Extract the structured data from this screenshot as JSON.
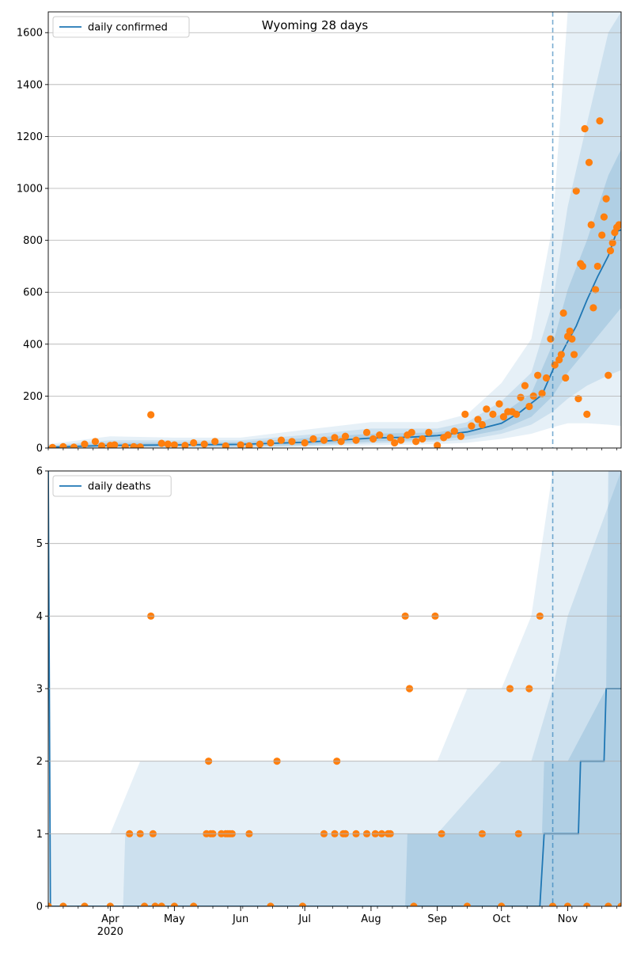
{
  "chart_data": [
    {
      "type": "line",
      "title": "Wyoming 28 days",
      "legend": {
        "placement": "top-left",
        "label": "daily confirmed"
      },
      "ylim": [
        0,
        1680
      ],
      "yticks": [
        0,
        200,
        400,
        600,
        800,
        1000,
        1200,
        1400,
        1600
      ],
      "xlim": [
        "2020-03-03",
        "2020-11-26"
      ],
      "forecast_start": "2020-10-25",
      "grid": "horizontal",
      "colors": {
        "line": "#1f77b4",
        "points": "#ff7f0e",
        "band": "#1f77b4"
      },
      "model_line": {
        "x": [
          "2020-03-03",
          "2020-04-01",
          "2020-05-01",
          "2020-06-01",
          "2020-07-01",
          "2020-08-01",
          "2020-08-20",
          "2020-09-01",
          "2020-09-15",
          "2020-10-01",
          "2020-10-10",
          "2020-10-20",
          "2020-10-25",
          "2020-11-01",
          "2020-11-05",
          "2020-11-10",
          "2020-11-15",
          "2020-11-20",
          "2020-11-24",
          "2020-11-26"
        ],
        "y": [
          3,
          10,
          12,
          14,
          22,
          38,
          42,
          48,
          62,
          95,
          140,
          205,
          300,
          410,
          470,
          570,
          660,
          740,
          835,
          840
        ]
      },
      "bands": [
        {
          "x": [
            "2020-03-03",
            "2020-04-01",
            "2020-05-01",
            "2020-06-01",
            "2020-07-01",
            "2020-08-01",
            "2020-09-01",
            "2020-09-15",
            "2020-10-01",
            "2020-10-15",
            "2020-10-25",
            "2020-11-01",
            "2020-11-10",
            "2020-11-20",
            "2020-11-26"
          ],
          "low": [
            0,
            0,
            0,
            0,
            5,
            10,
            15,
            20,
            35,
            55,
            80,
            95,
            95,
            90,
            85
          ],
          "high": [
            15,
            45,
            40,
            40,
            70,
            100,
            100,
            130,
            250,
            420,
            860,
            1680,
            1680,
            1680,
            1680
          ]
        },
        {
          "x": [
            "2020-03-03",
            "2020-04-01",
            "2020-05-01",
            "2020-06-01",
            "2020-07-01",
            "2020-08-01",
            "2020-09-01",
            "2020-09-15",
            "2020-10-01",
            "2020-10-15",
            "2020-10-25",
            "2020-11-01",
            "2020-11-10",
            "2020-11-20",
            "2020-11-26"
          ],
          "low": [
            0,
            2,
            3,
            4,
            8,
            18,
            25,
            32,
            55,
            90,
            140,
            190,
            240,
            280,
            300
          ],
          "high": [
            10,
            30,
            30,
            30,
            50,
            75,
            75,
            100,
            180,
            290,
            560,
            930,
            1250,
            1600,
            1680
          ]
        },
        {
          "x": [
            "2020-03-03",
            "2020-04-01",
            "2020-05-01",
            "2020-06-01",
            "2020-07-01",
            "2020-08-01",
            "2020-09-01",
            "2020-09-15",
            "2020-10-01",
            "2020-10-15",
            "2020-10-25",
            "2020-11-01",
            "2020-11-10",
            "2020-11-20",
            "2020-11-26"
          ],
          "low": [
            1,
            5,
            6,
            7,
            12,
            25,
            32,
            45,
            70,
            120,
            200,
            290,
            380,
            480,
            540
          ],
          "high": [
            7,
            20,
            20,
            22,
            38,
            55,
            60,
            80,
            130,
            210,
            400,
            610,
            800,
            1050,
            1150
          ]
        }
      ],
      "observed": {
        "x": [
          "2020-03-05",
          "2020-03-10",
          "2020-03-15",
          "2020-03-20",
          "2020-03-25",
          "2020-03-28",
          "2020-04-01",
          "2020-04-03",
          "2020-04-08",
          "2020-04-12",
          "2020-04-15",
          "2020-04-20",
          "2020-04-25",
          "2020-04-28",
          "2020-05-01",
          "2020-05-06",
          "2020-05-10",
          "2020-05-15",
          "2020-05-20",
          "2020-05-25",
          "2020-06-01",
          "2020-06-05",
          "2020-06-10",
          "2020-06-15",
          "2020-06-20",
          "2020-06-25",
          "2020-07-01",
          "2020-07-05",
          "2020-07-10",
          "2020-07-15",
          "2020-07-18",
          "2020-07-20",
          "2020-07-25",
          "2020-07-30",
          "2020-08-02",
          "2020-08-05",
          "2020-08-10",
          "2020-08-12",
          "2020-08-15",
          "2020-08-18",
          "2020-08-20",
          "2020-08-22",
          "2020-08-25",
          "2020-08-28",
          "2020-09-01",
          "2020-09-04",
          "2020-09-06",
          "2020-09-09",
          "2020-09-12",
          "2020-09-14",
          "2020-09-17",
          "2020-09-20",
          "2020-09-22",
          "2020-09-24",
          "2020-09-27",
          "2020-09-30",
          "2020-10-02",
          "2020-10-04",
          "2020-10-06",
          "2020-10-08",
          "2020-10-10",
          "2020-10-12",
          "2020-10-14",
          "2020-10-16",
          "2020-10-18",
          "2020-10-20",
          "2020-10-22",
          "2020-10-24",
          "2020-10-26",
          "2020-10-28",
          "2020-10-29",
          "2020-10-30",
          "2020-10-31",
          "2020-11-01",
          "2020-11-02",
          "2020-11-03",
          "2020-11-04",
          "2020-11-05",
          "2020-11-06",
          "2020-11-07",
          "2020-11-08",
          "2020-11-09",
          "2020-11-10",
          "2020-11-11",
          "2020-11-12",
          "2020-11-13",
          "2020-11-14",
          "2020-11-15",
          "2020-11-16",
          "2020-11-17",
          "2020-11-18",
          "2020-11-19",
          "2020-11-20",
          "2020-11-21",
          "2020-11-22",
          "2020-11-23",
          "2020-11-24",
          "2020-11-25"
        ],
        "y": [
          2,
          5,
          3,
          15,
          25,
          8,
          10,
          12,
          5,
          5,
          4,
          128,
          18,
          15,
          12,
          10,
          20,
          15,
          25,
          8,
          12,
          8,
          15,
          20,
          30,
          25,
          20,
          35,
          30,
          40,
          25,
          45,
          30,
          60,
          35,
          50,
          40,
          20,
          30,
          50,
          60,
          25,
          35,
          60,
          10,
          40,
          50,
          65,
          45,
          130,
          85,
          110,
          90,
          150,
          130,
          170,
          120,
          140,
          140,
          130,
          195,
          240,
          160,
          200,
          280,
          210,
          270,
          420,
          320,
          340,
          360,
          520,
          270,
          430,
          450,
          420,
          360,
          990,
          190,
          710,
          700,
          1230,
          130,
          1100,
          860,
          540,
          610,
          700,
          1260,
          820,
          890,
          960,
          280,
          760,
          790,
          830,
          850,
          860
        ]
      }
    },
    {
      "type": "line",
      "legend": {
        "placement": "top-left",
        "label": "daily deaths"
      },
      "ylim": [
        0,
        6
      ],
      "yticks": [
        0,
        1,
        2,
        3,
        4,
        5,
        6
      ],
      "xlim": [
        "2020-03-03",
        "2020-11-26"
      ],
      "xticks": [
        "Apr",
        "May",
        "Jun",
        "Jul",
        "Aug",
        "Sep",
        "Oct",
        "Nov"
      ],
      "xtick_dates": [
        "2020-04-01",
        "2020-05-01",
        "2020-06-01",
        "2020-07-01",
        "2020-08-01",
        "2020-09-01",
        "2020-10-01",
        "2020-11-01"
      ],
      "year_label": "2020",
      "forecast_start": "2020-10-25",
      "grid": "horizontal",
      "colors": {
        "line": "#1f77b4",
        "points": "#ff7f0e",
        "band": "#1f77b4"
      },
      "model_line": {
        "x": [
          "2020-03-03",
          "2020-03-04",
          "2020-03-05",
          "2020-10-19",
          "2020-10-21",
          "2020-11-06",
          "2020-11-07",
          "2020-11-18",
          "2020-11-19",
          "2020-11-26"
        ],
        "y": [
          6,
          0,
          0,
          0,
          1,
          1,
          2,
          2,
          3,
          3
        ]
      },
      "bands": [
        {
          "x": [
            "2020-03-03",
            "2020-03-13",
            "2020-03-15",
            "2020-04-01",
            "2020-04-15",
            "2020-05-01",
            "2020-06-01",
            "2020-07-01",
            "2020-08-01",
            "2020-09-01",
            "2020-09-15",
            "2020-10-01",
            "2020-10-15",
            "2020-10-25",
            "2020-11-01",
            "2020-11-26"
          ],
          "low": [
            0,
            0,
            0,
            0,
            0,
            0,
            0,
            0,
            0,
            0,
            0,
            0,
            0,
            0,
            0,
            0
          ],
          "high": [
            1,
            1,
            1,
            1,
            2,
            2,
            2,
            2,
            2,
            2,
            3,
            3,
            4,
            6,
            6,
            6
          ]
        },
        {
          "x": [
            "2020-03-03",
            "2020-04-07",
            "2020-04-08",
            "2020-06-01",
            "2020-08-01",
            "2020-09-01",
            "2020-10-01",
            "2020-10-15",
            "2020-10-25",
            "2020-11-01",
            "2020-11-26"
          ],
          "low": [
            0,
            0,
            0,
            0,
            0,
            0,
            0,
            0,
            0,
            0,
            0
          ],
          "high": [
            0,
            0,
            1,
            1,
            1,
            1,
            2,
            2,
            3,
            4,
            6
          ]
        },
        {
          "x": [
            "2020-03-03",
            "2020-08-01",
            "2020-08-17",
            "2020-08-18",
            "2020-10-01",
            "2020-10-20",
            "2020-10-21",
            "2020-11-01",
            "2020-11-19",
            "2020-11-20",
            "2020-11-26"
          ],
          "low": [
            0,
            0,
            0,
            0,
            0,
            0,
            0,
            0,
            0,
            0,
            0
          ],
          "high": [
            0,
            0,
            0,
            1,
            1,
            1,
            2,
            2,
            3,
            6,
            6
          ]
        }
      ],
      "observed": {
        "x": [
          "2020-03-03",
          "2020-03-10",
          "2020-03-20",
          "2020-04-01",
          "2020-04-10",
          "2020-04-15",
          "2020-04-17",
          "2020-04-20",
          "2020-04-21",
          "2020-04-22",
          "2020-04-25",
          "2020-05-01",
          "2020-05-10",
          "2020-05-16",
          "2020-05-17",
          "2020-05-18",
          "2020-05-19",
          "2020-05-23",
          "2020-05-25",
          "2020-05-26",
          "2020-05-27",
          "2020-05-28",
          "2020-06-05",
          "2020-06-15",
          "2020-06-18",
          "2020-06-30",
          "2020-07-10",
          "2020-07-15",
          "2020-07-16",
          "2020-07-19",
          "2020-07-20",
          "2020-07-25",
          "2020-07-30",
          "2020-08-03",
          "2020-08-06",
          "2020-08-09",
          "2020-08-10",
          "2020-08-17",
          "2020-08-19",
          "2020-08-21",
          "2020-08-31",
          "2020-09-03",
          "2020-09-15",
          "2020-09-22",
          "2020-10-01",
          "2020-10-05",
          "2020-10-09",
          "2020-10-14",
          "2020-10-19",
          "2020-10-25",
          "2020-11-01",
          "2020-11-10",
          "2020-11-20",
          "2020-11-26"
        ],
        "y": [
          0,
          0,
          0,
          0,
          1,
          1,
          0,
          4,
          1,
          0,
          0,
          0,
          0,
          1,
          2,
          1,
          1,
          1,
          1,
          1,
          1,
          1,
          1,
          0,
          2,
          0,
          1,
          1,
          2,
          1,
          1,
          1,
          1,
          1,
          1,
          1,
          1,
          4,
          3,
          0,
          4,
          1,
          0,
          1,
          0,
          3,
          1,
          3,
          4,
          0,
          0,
          0,
          0,
          0
        ]
      }
    }
  ]
}
